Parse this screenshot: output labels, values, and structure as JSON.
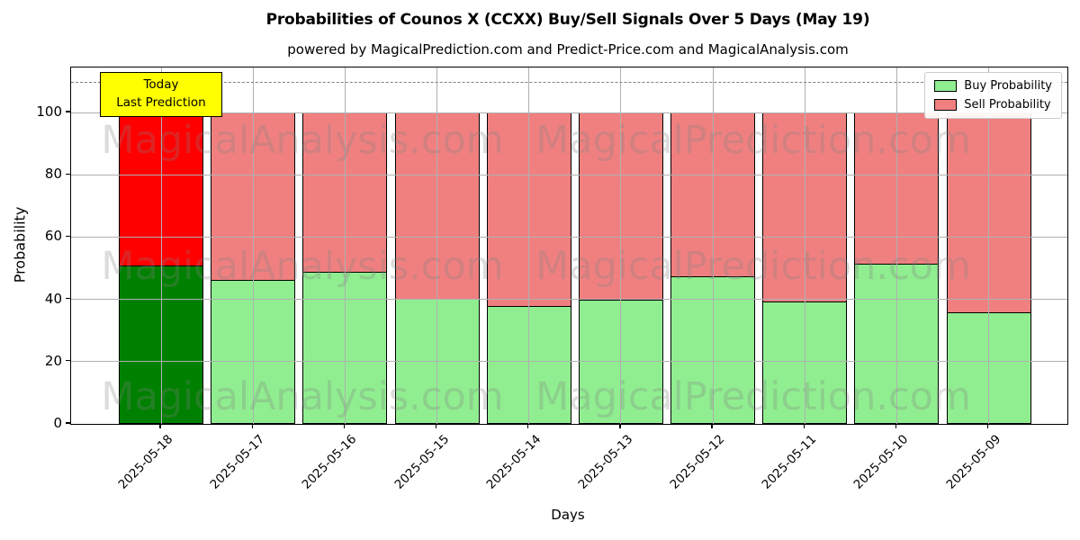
{
  "title": "Probabilities of Counos X (CCXX) Buy/Sell Signals Over 5 Days (May 19)",
  "subtitle": "powered by MagicalPrediction.com and Predict-Price.com and MagicalAnalysis.com",
  "chart_data": {
    "type": "bar",
    "stacked": true,
    "title": "Probabilities of Counos X (CCXX) Buy/Sell Signals Over 5 Days (May 19)",
    "subtitle": "powered by MagicalPrediction.com and Predict-Price.com and MagicalAnalysis.com",
    "categories": [
      "2025-05-18",
      "2025-05-17",
      "2025-05-16",
      "2025-05-15",
      "2025-05-14",
      "2025-05-13",
      "2025-05-12",
      "2025-05-11",
      "2025-05-10",
      "2025-05-09"
    ],
    "series": [
      {
        "name": "Buy Probability",
        "values": [
          51,
          46.5,
          49,
          40.5,
          38,
          40,
          47.5,
          39.5,
          51.5,
          36
        ],
        "color": "#90ee90",
        "today_color": "#008000"
      },
      {
        "name": "Sell Probability",
        "values": [
          49,
          53.5,
          51,
          59.5,
          62,
          60,
          52.5,
          60.5,
          48.5,
          64
        ],
        "color": "#f08080",
        "today_color": "#ff0000"
      }
    ],
    "xlabel": "Days",
    "ylabel": "Probability",
    "yticks": [
      0,
      20,
      40,
      60,
      80,
      100
    ],
    "ylim": [
      0,
      114.5
    ],
    "dashed_line_y": 110,
    "grid": true,
    "legend_position": "upper right",
    "legend": [
      "Buy Probability",
      "Sell Probability"
    ],
    "annotation": {
      "lines": [
        "Today",
        "Last Prediction"
      ],
      "bg_color": "#ffff00"
    },
    "watermarks": {
      "left_text": "MagicalAnalysis.com",
      "right_text": "MagicalPrediction.com"
    }
  },
  "colors": {
    "today_buy": "#008000",
    "today_sell": "#ff0000",
    "buy": "#90ee90",
    "sell": "#f08080",
    "annotation_bg": "#ffff00",
    "grid": "#b0b0b0",
    "dashed_line": "#7f7f7f"
  }
}
